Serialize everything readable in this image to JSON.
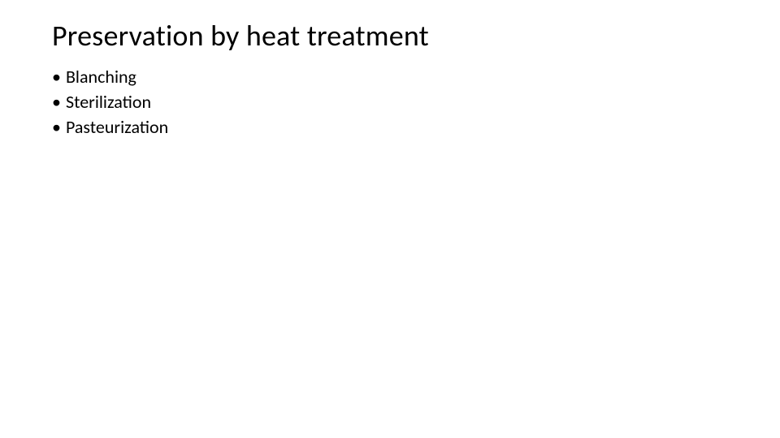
{
  "slide": {
    "title": "Preservation by heat treatment",
    "title_fontsize": 36,
    "title_color": "#000000",
    "background_color": "#ffffff",
    "body_fontsize": 22,
    "body_color": "#000000",
    "bullet_char": "•",
    "bullets": [
      {
        "text": "Blanching"
      },
      {
        "text": "Sterilization"
      },
      {
        "text": "Pasteurization"
      }
    ]
  }
}
